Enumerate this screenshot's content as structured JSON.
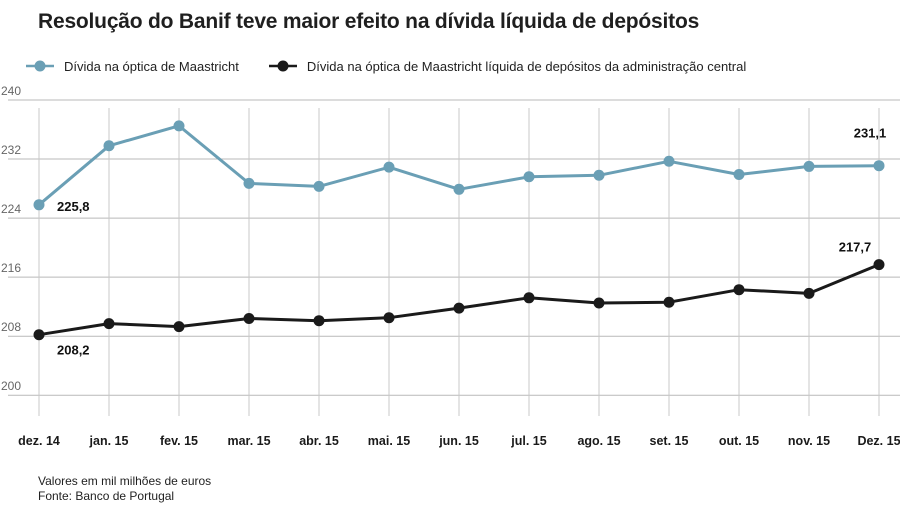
{
  "title": "Resolução do Banif teve maior efeito na dívida líquida de depósitos",
  "legend": [
    {
      "label": "Dívida na óptica de Maastricht",
      "color": "#6a9fb5"
    },
    {
      "label": "Dívida na óptica de Maastricht líquida de depósitos da administração central",
      "color": "#1a1a1a"
    }
  ],
  "notes": {
    "units": "Valores em mil milhões de euros",
    "source": "Fonte: Banco de Portugal"
  },
  "chart_data": {
    "type": "line",
    "title": "Resolução do Banif teve maior efeito na dívida líquida de depósitos",
    "xlabel": "",
    "ylabel": "",
    "categories": [
      "dez. 14",
      "jan. 15",
      "fev. 15",
      "mar. 15",
      "abr. 15",
      "mai. 15",
      "jun. 15",
      "jul. 15",
      "ago. 15",
      "set. 15",
      "out. 15",
      "nov. 15",
      "Dez. 15"
    ],
    "y_ticks": [
      "240",
      "232",
      "224",
      "216",
      "208",
      "200"
    ],
    "ylim": [
      198,
      240
    ],
    "grid": true,
    "legend_position": "top-left",
    "series": [
      {
        "name": "Dívida na óptica de Maastricht",
        "color": "#6a9fb5",
        "values": [
          225.8,
          233.8,
          236.5,
          228.7,
          228.3,
          230.9,
          227.9,
          229.6,
          229.8,
          231.7,
          229.9,
          231.0,
          231.1
        ]
      },
      {
        "name": "Dívida na óptica de Maastricht líquida de depósitos da administração central",
        "color": "#1a1a1a",
        "values": [
          208.2,
          209.7,
          209.3,
          210.4,
          210.1,
          210.5,
          211.8,
          213.2,
          212.5,
          212.6,
          214.3,
          213.8,
          217.7
        ]
      }
    ],
    "annotations": [
      {
        "series": 0,
        "index": 0,
        "text": "225,8"
      },
      {
        "series": 0,
        "index": 12,
        "text": "231,1"
      },
      {
        "series": 1,
        "index": 0,
        "text": "208,2"
      },
      {
        "series": 1,
        "index": 12,
        "text": "217,7"
      }
    ]
  }
}
